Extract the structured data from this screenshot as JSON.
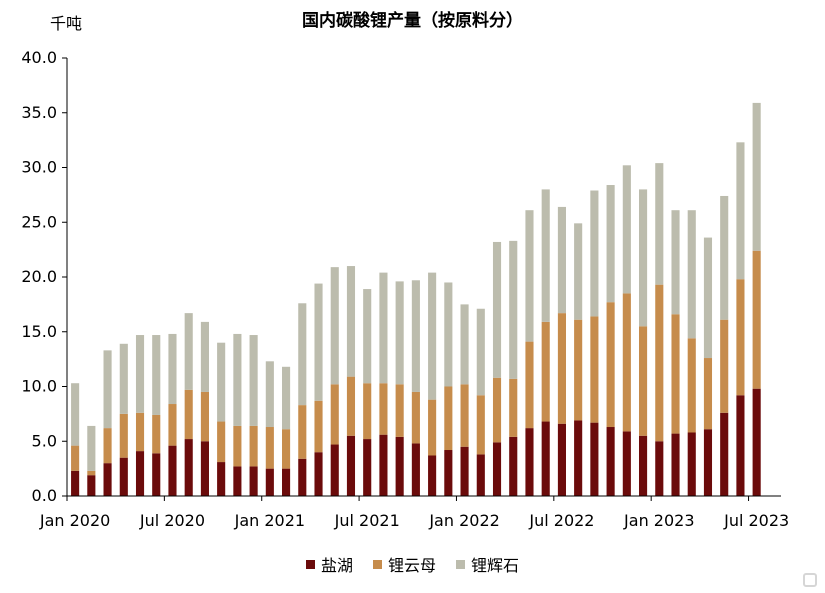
{
  "chart_data": {
    "type": "bar",
    "stacked": true,
    "title": "国内碳酸锂产量（按原料分）",
    "ylabel": "千吨",
    "ylim": [
      0,
      40
    ],
    "yticks": [
      "0.0",
      "5.0",
      "10.0",
      "15.0",
      "20.0",
      "25.0",
      "30.0",
      "35.0",
      "40.0"
    ],
    "xticks": [
      {
        "label": "Jan 2020",
        "index": 0
      },
      {
        "label": "Jul 2020",
        "index": 6
      },
      {
        "label": "Jan 2021",
        "index": 12
      },
      {
        "label": "Jul 2021",
        "index": 18
      },
      {
        "label": "Jan 2022",
        "index": 24
      },
      {
        "label": "Jul 2022",
        "index": 30
      },
      {
        "label": "Jan 2023",
        "index": 36
      },
      {
        "label": "Jul 2023",
        "index": 42
      }
    ],
    "categories": [
      "2020-01",
      "2020-02",
      "2020-03",
      "2020-04",
      "2020-05",
      "2020-06",
      "2020-07",
      "2020-08",
      "2020-09",
      "2020-10",
      "2020-11",
      "2020-12",
      "2021-01",
      "2021-02",
      "2021-03",
      "2021-04",
      "2021-05",
      "2021-06",
      "2021-07",
      "2021-08",
      "2021-09",
      "2021-10",
      "2021-11",
      "2021-12",
      "2022-01",
      "2022-02",
      "2022-03",
      "2022-04",
      "2022-05",
      "2022-06",
      "2022-07",
      "2022-08",
      "2022-09",
      "2022-10",
      "2022-11",
      "2022-12",
      "2023-01",
      "2023-02",
      "2023-03",
      "2023-04",
      "2023-05",
      "2023-06",
      "2023-07",
      "2023-08"
    ],
    "series": [
      {
        "name": "盐湖",
        "color": "#6b0b0b",
        "values": [
          2.3,
          1.9,
          3.0,
          3.5,
          4.1,
          3.9,
          4.6,
          5.2,
          5.0,
          3.1,
          2.7,
          2.7,
          2.5,
          2.5,
          3.4,
          4.0,
          4.7,
          5.5,
          5.2,
          5.6,
          5.4,
          4.8,
          3.7,
          4.2,
          4.5,
          3.8,
          4.9,
          5.4,
          6.2,
          6.8,
          6.6,
          6.9,
          6.7,
          6.3,
          5.9,
          5.5,
          5.0,
          5.7,
          5.8,
          6.1,
          7.6,
          9.2,
          9.8,
          0
        ]
      },
      {
        "name": "锂云母",
        "color": "#c68c4c",
        "values": [
          2.3,
          0.4,
          3.2,
          4.0,
          3.5,
          3.5,
          3.8,
          4.5,
          4.5,
          3.7,
          3.7,
          3.7,
          3.8,
          3.6,
          4.9,
          4.7,
          5.5,
          5.4,
          5.1,
          4.7,
          4.8,
          4.7,
          5.1,
          5.8,
          5.7,
          5.4,
          5.9,
          5.3,
          7.9,
          9.1,
          10.1,
          9.2,
          9.7,
          11.4,
          12.6,
          10.0,
          14.3,
          10.9,
          8.6,
          6.5,
          8.5,
          10.6,
          12.6,
          0
        ]
      },
      {
        "name": "锂辉石",
        "color": "#bcbcad",
        "values": [
          5.7,
          4.1,
          7.1,
          6.4,
          7.1,
          7.3,
          6.4,
          7.0,
          6.4,
          7.2,
          8.4,
          8.3,
          6.0,
          5.7,
          9.3,
          10.7,
          10.7,
          10.1,
          8.6,
          10.1,
          9.4,
          10.2,
          11.6,
          9.5,
          7.3,
          7.9,
          12.4,
          12.6,
          12.0,
          12.1,
          9.7,
          8.8,
          11.5,
          10.7,
          11.7,
          12.5,
          11.1,
          9.5,
          11.7,
          11.0,
          11.3,
          12.5,
          13.5,
          0
        ]
      }
    ]
  }
}
